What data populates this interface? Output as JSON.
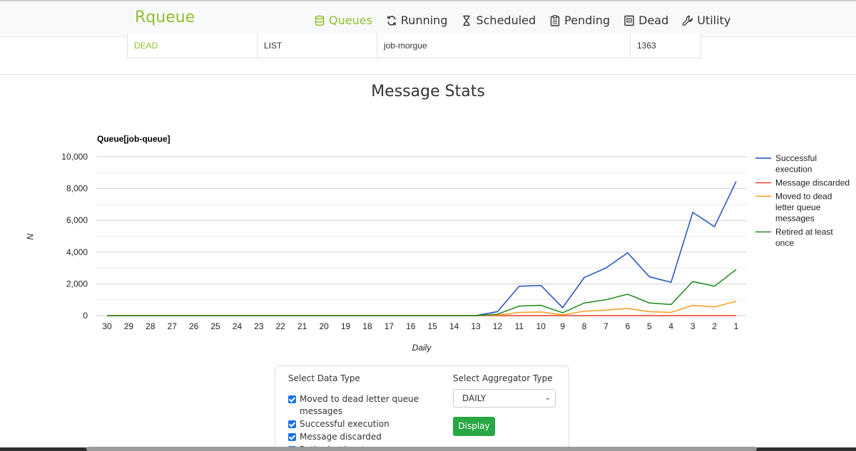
{
  "app": {
    "brand": "Rqueue"
  },
  "nav": [
    {
      "label": "Queues",
      "icon": "database-icon",
      "active": true
    },
    {
      "label": "Running",
      "icon": "refresh-icon",
      "active": false
    },
    {
      "label": "Scheduled",
      "icon": "hourglass-icon",
      "active": false
    },
    {
      "label": "Pending",
      "icon": "clipboard-icon",
      "active": false
    },
    {
      "label": "Dead",
      "icon": "archive-icon",
      "active": false
    },
    {
      "label": "Utility",
      "icon": "wrench-icon",
      "active": false
    }
  ],
  "queue_row": {
    "type": "DEAD",
    "data_structure": "LIST",
    "name": "job-morgue",
    "size": "1363"
  },
  "section_title": "Message Stats",
  "chart_data": {
    "type": "line",
    "title": "Queue[job-queue]",
    "xlabel": "Daily",
    "ylabel": "N",
    "ylim": [
      0,
      10000
    ],
    "y_ticks": [
      "0",
      "2,000",
      "4,000",
      "6,000",
      "8,000",
      "10,000"
    ],
    "grid": true,
    "legend_position": "right",
    "categories": [
      "30",
      "29",
      "28",
      "27",
      "26",
      "25",
      "24",
      "23",
      "22",
      "21",
      "20",
      "19",
      "18",
      "17",
      "16",
      "15",
      "14",
      "13",
      "12",
      "11",
      "10",
      "9",
      "8",
      "7",
      "6",
      "5",
      "4",
      "3",
      "2",
      "1"
    ],
    "series": [
      {
        "name": "Successful execution",
        "color": "#1f4fbf",
        "values": [
          0,
          0,
          0,
          0,
          0,
          0,
          0,
          0,
          0,
          0,
          0,
          0,
          0,
          0,
          0,
          0,
          0,
          0,
          250,
          1850,
          1900,
          500,
          2400,
          3000,
          3950,
          2450,
          2100,
          6500,
          5600,
          8450
        ]
      },
      {
        "name": "Message discarded",
        "color": "#e63a1f",
        "values": [
          0,
          0,
          0,
          0,
          0,
          0,
          0,
          0,
          0,
          0,
          0,
          0,
          0,
          0,
          0,
          0,
          0,
          0,
          0,
          0,
          0,
          0,
          0,
          0,
          0,
          0,
          0,
          0,
          0,
          0
        ]
      },
      {
        "name": "Moved to dead letter queue messages",
        "color": "#ff9a1a",
        "values": [
          0,
          0,
          0,
          0,
          0,
          0,
          0,
          0,
          0,
          0,
          0,
          0,
          0,
          0,
          0,
          0,
          0,
          0,
          30,
          200,
          230,
          50,
          280,
          350,
          450,
          250,
          200,
          650,
          550,
          900
        ]
      },
      {
        "name": "Retired at least once",
        "color": "#1a8a1a",
        "values": [
          0,
          0,
          0,
          0,
          0,
          0,
          0,
          0,
          0,
          0,
          0,
          0,
          0,
          0,
          0,
          0,
          0,
          0,
          90,
          600,
          650,
          180,
          800,
          1000,
          1350,
          800,
          700,
          2150,
          1850,
          2900
        ]
      }
    ]
  },
  "controls": {
    "data_type_title": "Select Data Type",
    "aggregator_title": "Select Aggregator Type",
    "checkboxes": [
      {
        "label": "Moved to dead letter queue messages",
        "checked": true
      },
      {
        "label": "Successful execution",
        "checked": true
      },
      {
        "label": "Message discarded",
        "checked": true
      },
      {
        "label": "Retired at least once",
        "checked": true
      }
    ],
    "aggregator_value": "DAILY",
    "display_label": "Display"
  }
}
